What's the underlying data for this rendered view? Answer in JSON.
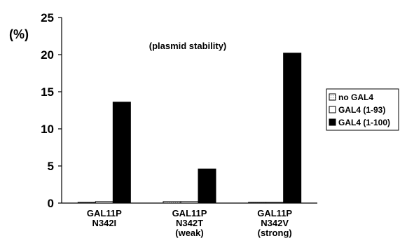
{
  "chart_data": {
    "type": "bar",
    "title": "",
    "annotation": "(plasmid stability)",
    "ylabel": "(%)",
    "xlabel": "",
    "ylim": [
      0,
      25
    ],
    "yticks": [
      0,
      5,
      10,
      15,
      20,
      25
    ],
    "grid": false,
    "legend_position": "right",
    "categories": [
      [
        "GAL11P",
        "N342I"
      ],
      [
        "GAL11P",
        "N342T",
        "(weak)"
      ],
      [
        "GAL11P",
        "N342V",
        "(strong)"
      ]
    ],
    "series": [
      {
        "name": "no GAL4",
        "color": "#ffffff",
        "pattern": "dotted",
        "values": [
          0.1,
          0.2,
          0.1
        ]
      },
      {
        "name": "GAL4 (1-93)",
        "color": "#ffffff",
        "pattern": "plain",
        "values": [
          0.2,
          0.2,
          0.1
        ]
      },
      {
        "name": "GAL4 (1-100)",
        "color": "#000000",
        "pattern": "solid",
        "values": [
          13.6,
          4.6,
          20.2
        ]
      }
    ]
  }
}
